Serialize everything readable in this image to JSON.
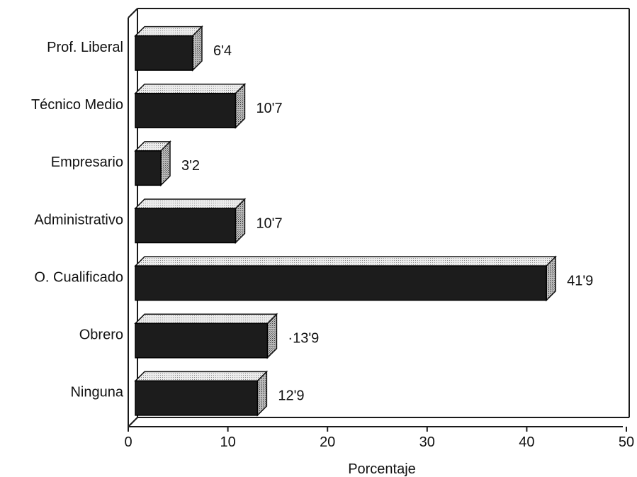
{
  "chart_data": {
    "type": "bar",
    "orientation": "horizontal",
    "style": "3d",
    "categories": [
      "Prof. Liberal",
      "Técnico Medio",
      "Empresario",
      "Administrativo",
      "O. Cualificado",
      "Obrero",
      "Ninguna"
    ],
    "values": [
      6.4,
      10.7,
      3.2,
      10.7,
      41.9,
      13.9,
      12.9
    ],
    "data_labels": [
      "6'4",
      "10'7",
      "3'2",
      "10'7",
      "41'9",
      "·13'9",
      "12'9"
    ],
    "xlabel": "Porcentaje",
    "ylabel": "",
    "title": "",
    "xlim": [
      0,
      50
    ],
    "xticks": [
      0,
      10,
      20,
      30,
      40,
      50
    ],
    "xtick_labels": [
      "0",
      "10",
      "20",
      "30",
      "40",
      "50"
    ],
    "grid": false,
    "legend": "none",
    "colors": {
      "bar_front": "#1c1c1c",
      "bar_top": "#e4e4e4",
      "bar_side": "#9a9a9a",
      "axis": "#1a1a1a",
      "background": "#ffffff"
    }
  }
}
